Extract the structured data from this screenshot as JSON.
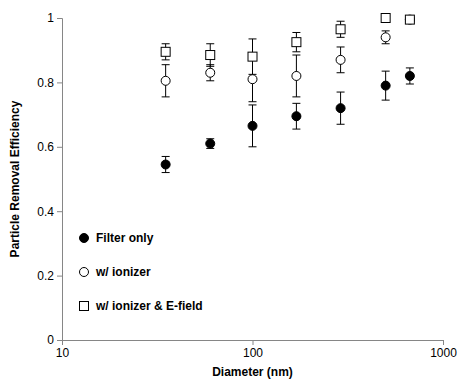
{
  "chart_data": {
    "type": "scatter",
    "x_label": "Diameter (nm)",
    "y_label": "Particle Removal Efficiency",
    "x": [
      35,
      60,
      100,
      170,
      290,
      500,
      670
    ],
    "series": [
      {
        "name": "Filter only",
        "color": "#000000",
        "marker": "circle",
        "values": [
          0.545,
          0.61,
          0.665,
          0.695,
          0.72,
          0.79,
          0.82
        ],
        "errors": [
          0.025,
          0.015,
          0.065,
          0.04,
          0.05,
          0.045,
          0.025
        ]
      },
      {
        "name": "w/ ionizer",
        "color": "#000000",
        "marker": "circle-open",
        "values": [
          0.805,
          0.83,
          0.81,
          0.82,
          0.87,
          0.94,
          0.995
        ],
        "errors": [
          0.05,
          0.025,
          0.07,
          0.065,
          0.04,
          0.02,
          0.01
        ]
      },
      {
        "name": "w/ ionizer & E-field",
        "color": "#000000",
        "marker": "square-open",
        "values": [
          0.895,
          0.885,
          0.88,
          0.925,
          0.965,
          1.0,
          0.995
        ],
        "errors": [
          0.025,
          0.035,
          0.055,
          0.03,
          0.025,
          0.005,
          0.01
        ]
      }
    ],
    "log": "x",
    "xlim": [
      10,
      1000
    ],
    "xticks": [
      10,
      100,
      1000
    ],
    "ylim": [
      0,
      1
    ],
    "yticks": [
      0,
      0.2,
      0.4,
      0.6,
      0.8,
      1
    ],
    "grid": false,
    "legend": "lower left"
  }
}
